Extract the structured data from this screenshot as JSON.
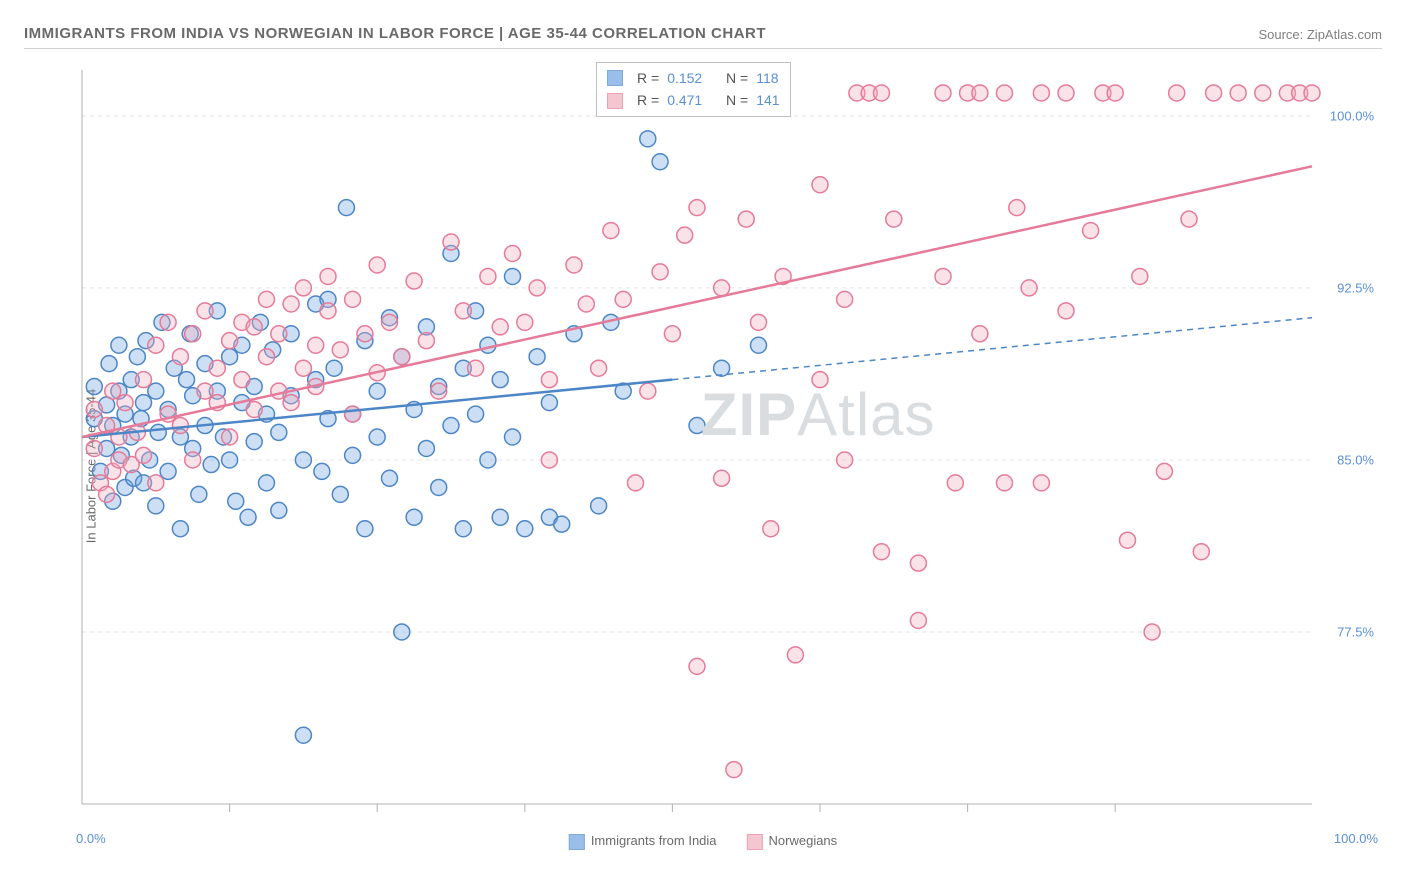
{
  "title": "IMMIGRANTS FROM INDIA VS NORWEGIAN IN LABOR FORCE | AGE 35-44 CORRELATION CHART",
  "source": "Source: ZipAtlas.com",
  "watermark_bold": "ZIP",
  "watermark_rest": "Atlas",
  "ylabel": "In Labor Force | Age 35-44",
  "chart": {
    "type": "scatter",
    "xlim": [
      0,
      100
    ],
    "ylim": [
      70,
      102
    ],
    "background_color": "#ffffff",
    "grid_color": "#e4e4e4",
    "grid_dash": "4,4",
    "axis_color": "#b0b0b0",
    "ytick_values": [
      77.5,
      85.0,
      92.5,
      100.0
    ],
    "ytick_labels": [
      "77.5%",
      "85.0%",
      "92.5%",
      "100.0%"
    ],
    "xtick_values": [
      0,
      12,
      24,
      36,
      48,
      60,
      72,
      84,
      100
    ],
    "xtick_minor_draw": [
      12,
      24,
      36,
      48,
      60,
      72,
      84
    ],
    "xtick_labels_shown": [
      {
        "x": 0,
        "label": "0.0%"
      },
      {
        "x": 100,
        "label": "100.0%"
      }
    ],
    "marker_radius": 8,
    "marker_stroke_width": 1.5,
    "marker_fill_opacity": 0.35,
    "series": [
      {
        "name": "Immigrants from India",
        "color": "#6fa3e0",
        "stroke": "#4d86c6",
        "R": "0.152",
        "N": "118",
        "trend": {
          "x0": 0,
          "y0": 86.0,
          "x1": 48,
          "y1": 88.5,
          "dash_from_x": 48,
          "x2": 100,
          "y2": 91.2
        },
        "points": [
          [
            1,
            86.8
          ],
          [
            1,
            88.2
          ],
          [
            1.5,
            84.5
          ],
          [
            2,
            87.4
          ],
          [
            2,
            85.5
          ],
          [
            2.2,
            89.2
          ],
          [
            2.5,
            86.5
          ],
          [
            2.5,
            83.2
          ],
          [
            3,
            88.0
          ],
          [
            3,
            90.0
          ],
          [
            3.2,
            85.2
          ],
          [
            3.5,
            87.0
          ],
          [
            3.5,
            83.8
          ],
          [
            4,
            86.0
          ],
          [
            4,
            88.5
          ],
          [
            4.2,
            84.2
          ],
          [
            4.5,
            89.5
          ],
          [
            4.8,
            86.8
          ],
          [
            5,
            84.0
          ],
          [
            5,
            87.5
          ],
          [
            5.2,
            90.2
          ],
          [
            5.5,
            85.0
          ],
          [
            6,
            88.0
          ],
          [
            6,
            83.0
          ],
          [
            6.2,
            86.2
          ],
          [
            6.5,
            91.0
          ],
          [
            7,
            87.2
          ],
          [
            7,
            84.5
          ],
          [
            7.5,
            89.0
          ],
          [
            8,
            86.0
          ],
          [
            8,
            82.0
          ],
          [
            8.5,
            88.5
          ],
          [
            8.8,
            90.5
          ],
          [
            9,
            85.5
          ],
          [
            9,
            87.8
          ],
          [
            9.5,
            83.5
          ],
          [
            10,
            89.2
          ],
          [
            10,
            86.5
          ],
          [
            10.5,
            84.8
          ],
          [
            11,
            88.0
          ],
          [
            11,
            91.5
          ],
          [
            11.5,
            86.0
          ],
          [
            12,
            85.0
          ],
          [
            12,
            89.5
          ],
          [
            12.5,
            83.2
          ],
          [
            13,
            87.5
          ],
          [
            13,
            90.0
          ],
          [
            13.5,
            82.5
          ],
          [
            14,
            88.2
          ],
          [
            14,
            85.8
          ],
          [
            14.5,
            91.0
          ],
          [
            15,
            84.0
          ],
          [
            15,
            87.0
          ],
          [
            15.5,
            89.8
          ],
          [
            16,
            86.2
          ],
          [
            16,
            82.8
          ],
          [
            17,
            90.5
          ],
          [
            17,
            87.8
          ],
          [
            18,
            85.0
          ],
          [
            18,
            73.0
          ],
          [
            19,
            88.5
          ],
          [
            19,
            91.8
          ],
          [
            19.5,
            84.5
          ],
          [
            20,
            92.0
          ],
          [
            20,
            86.8
          ],
          [
            20.5,
            89.0
          ],
          [
            21,
            83.5
          ],
          [
            21.5,
            96.0
          ],
          [
            22,
            87.0
          ],
          [
            22,
            85.2
          ],
          [
            23,
            90.2
          ],
          [
            23,
            82.0
          ],
          [
            24,
            88.0
          ],
          [
            24,
            86.0
          ],
          [
            25,
            91.2
          ],
          [
            25,
            84.2
          ],
          [
            26,
            77.5
          ],
          [
            26,
            89.5
          ],
          [
            27,
            87.2
          ],
          [
            27,
            82.5
          ],
          [
            28,
            90.8
          ],
          [
            28,
            85.5
          ],
          [
            29,
            88.2
          ],
          [
            29,
            83.8
          ],
          [
            30,
            94.0
          ],
          [
            30,
            86.5
          ],
          [
            31,
            89.0
          ],
          [
            31,
            82.0
          ],
          [
            32,
            91.5
          ],
          [
            32,
            87.0
          ],
          [
            33,
            85.0
          ],
          [
            33,
            90.0
          ],
          [
            34,
            82.5
          ],
          [
            34,
            88.5
          ],
          [
            35,
            93.0
          ],
          [
            35,
            86.0
          ],
          [
            36,
            82.0
          ],
          [
            37,
            89.5
          ],
          [
            38,
            82.5
          ],
          [
            38,
            87.5
          ],
          [
            39,
            82.2
          ],
          [
            40,
            90.5
          ],
          [
            42,
            83.0
          ],
          [
            43,
            91.0
          ],
          [
            44,
            88.0
          ],
          [
            46,
            99.0
          ],
          [
            47,
            98.0
          ],
          [
            50,
            86.5
          ],
          [
            52,
            89.0
          ],
          [
            55,
            90.0
          ]
        ]
      },
      {
        "name": "Norwegians",
        "color": "#f0aebd",
        "stroke": "#e57a99",
        "R": "0.471",
        "N": "141",
        "trend": {
          "x0": 0,
          "y0": 86.0,
          "x1": 100,
          "y1": 97.8
        },
        "points": [
          [
            1,
            85.5
          ],
          [
            1,
            87.2
          ],
          [
            1.5,
            84.0
          ],
          [
            2,
            86.5
          ],
          [
            2,
            83.5
          ],
          [
            2.5,
            84.5
          ],
          [
            2.5,
            88.0
          ],
          [
            3,
            86.0
          ],
          [
            3,
            85.0
          ],
          [
            3.5,
            87.5
          ],
          [
            4,
            84.8
          ],
          [
            4.5,
            86.2
          ],
          [
            5,
            88.5
          ],
          [
            5,
            85.2
          ],
          [
            6,
            84.0
          ],
          [
            6,
            90.0
          ],
          [
            7,
            87.0
          ],
          [
            7,
            91.0
          ],
          [
            8,
            89.5
          ],
          [
            8,
            86.5
          ],
          [
            9,
            85.0
          ],
          [
            9,
            90.5
          ],
          [
            10,
            88.0
          ],
          [
            10,
            91.5
          ],
          [
            11,
            87.5
          ],
          [
            11,
            89.0
          ],
          [
            12,
            90.2
          ],
          [
            12,
            86.0
          ],
          [
            13,
            91.0
          ],
          [
            13,
            88.5
          ],
          [
            14,
            90.8
          ],
          [
            14,
            87.2
          ],
          [
            15,
            89.5
          ],
          [
            15,
            92.0
          ],
          [
            16,
            88.0
          ],
          [
            16,
            90.5
          ],
          [
            17,
            91.8
          ],
          [
            17,
            87.5
          ],
          [
            18,
            89.0
          ],
          [
            18,
            92.5
          ],
          [
            19,
            90.0
          ],
          [
            19,
            88.2
          ],
          [
            20,
            91.5
          ],
          [
            20,
            93.0
          ],
          [
            21,
            89.8
          ],
          [
            22,
            87.0
          ],
          [
            22,
            92.0
          ],
          [
            23,
            90.5
          ],
          [
            24,
            88.8
          ],
          [
            24,
            93.5
          ],
          [
            25,
            91.0
          ],
          [
            26,
            89.5
          ],
          [
            27,
            92.8
          ],
          [
            28,
            90.2
          ],
          [
            29,
            88.0
          ],
          [
            30,
            94.5
          ],
          [
            31,
            91.5
          ],
          [
            32,
            89.0
          ],
          [
            33,
            93.0
          ],
          [
            34,
            90.8
          ],
          [
            35,
            94.0
          ],
          [
            36,
            91.0
          ],
          [
            37,
            92.5
          ],
          [
            38,
            88.5
          ],
          [
            38,
            85.0
          ],
          [
            40,
            93.5
          ],
          [
            41,
            91.8
          ],
          [
            42,
            89.0
          ],
          [
            43,
            95.0
          ],
          [
            44,
            92.0
          ],
          [
            45,
            84.0
          ],
          [
            46,
            88.0
          ],
          [
            47,
            93.2
          ],
          [
            48,
            90.5
          ],
          [
            49,
            94.8
          ],
          [
            50,
            96.0
          ],
          [
            50,
            76.0
          ],
          [
            52,
            92.5
          ],
          [
            52,
            84.2
          ],
          [
            53,
            71.5
          ],
          [
            54,
            95.5
          ],
          [
            55,
            91.0
          ],
          [
            56,
            82.0
          ],
          [
            57,
            93.0
          ],
          [
            58,
            76.5
          ],
          [
            60,
            88.5
          ],
          [
            60,
            97.0
          ],
          [
            62,
            85.0
          ],
          [
            62,
            92.0
          ],
          [
            63,
            101.0
          ],
          [
            64,
            101.0
          ],
          [
            65,
            101.0
          ],
          [
            65,
            81.0
          ],
          [
            66,
            95.5
          ],
          [
            68,
            80.5
          ],
          [
            68,
            78.0
          ],
          [
            70,
            101.0
          ],
          [
            70,
            93.0
          ],
          [
            71,
            84.0
          ],
          [
            72,
            101.0
          ],
          [
            73,
            90.5
          ],
          [
            73,
            101.0
          ],
          [
            75,
            84.0
          ],
          [
            75,
            101.0
          ],
          [
            76,
            96.0
          ],
          [
            77,
            92.5
          ],
          [
            78,
            101.0
          ],
          [
            78,
            84.0
          ],
          [
            80,
            91.5
          ],
          [
            80,
            101.0
          ],
          [
            82,
            95.0
          ],
          [
            83,
            101.0
          ],
          [
            84,
            101.0
          ],
          [
            85,
            81.5
          ],
          [
            86,
            93.0
          ],
          [
            87,
            77.5
          ],
          [
            88,
            84.5
          ],
          [
            89,
            101.0
          ],
          [
            90,
            95.5
          ],
          [
            91,
            81.0
          ],
          [
            92,
            101.0
          ],
          [
            94,
            101.0
          ],
          [
            96,
            101.0
          ],
          [
            98,
            101.0
          ],
          [
            99,
            101.0
          ],
          [
            100,
            101.0
          ]
        ]
      }
    ]
  },
  "legend_box": {
    "rows": [
      {
        "R_label": "R =",
        "R": "0.152",
        "N_label": "N =",
        "N": "118",
        "color": "#6fa3e0",
        "stroke": "#4d86c6"
      },
      {
        "R_label": "R =",
        "R": "0.471",
        "N_label": "N =",
        "N": "141",
        "color": "#f0aebd",
        "stroke": "#e57a99"
      }
    ]
  },
  "legend_bottom": [
    {
      "label": "Immigrants from India",
      "color": "#6fa3e0",
      "stroke": "#4d86c6"
    },
    {
      "label": "Norwegians",
      "color": "#f0aebd",
      "stroke": "#e57a99"
    }
  ]
}
